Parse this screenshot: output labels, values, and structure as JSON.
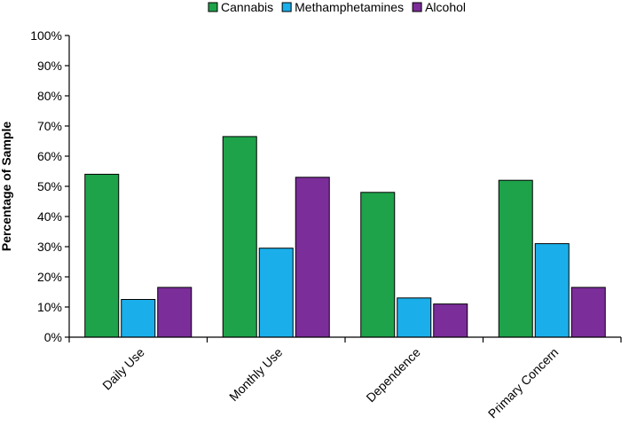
{
  "chart_data": {
    "type": "bar",
    "categories": [
      "Daily Use",
      "Monthly Use",
      "Dependence",
      "Primary Concern"
    ],
    "series": [
      {
        "name": "Cannabis",
        "color": "#1ea34a",
        "values": [
          54,
          66.5,
          48,
          52
        ]
      },
      {
        "name": "Methamphetamines",
        "color": "#1aafeb",
        "values": [
          12.5,
          29.5,
          13,
          31
        ]
      },
      {
        "name": "Alcohol",
        "color": "#7b2d9a",
        "values": [
          16.5,
          53,
          11,
          16.5
        ]
      }
    ],
    "title": "",
    "xlabel": "",
    "ylabel": "Percentage of Sample",
    "ylim": [
      0,
      100
    ],
    "yticks": [
      "0%",
      "10%",
      "20%",
      "30%",
      "40%",
      "50%",
      "60%",
      "70%",
      "80%",
      "90%",
      "100%"
    ],
    "legend_position": "top-center",
    "grid": false
  }
}
